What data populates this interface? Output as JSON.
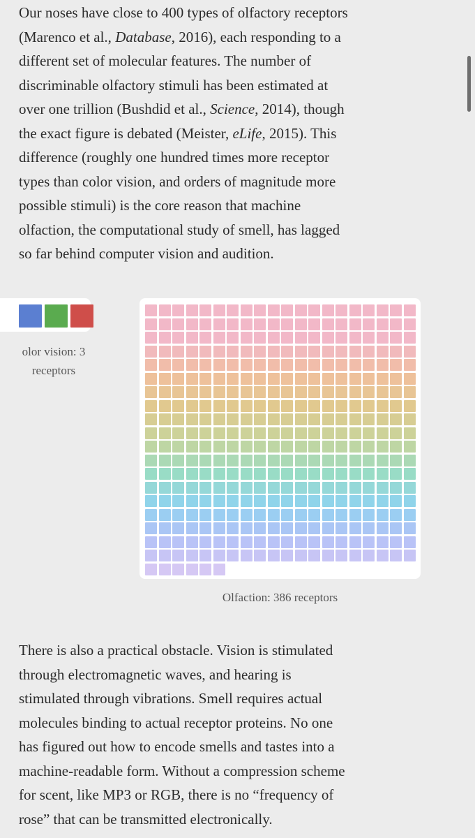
{
  "paragraphs": [
    {
      "lines": [
        [
          "Our noses have close to 400 types of olfactory receptors"
        ],
        [
          "(Marenco et al., ",
          {
            "em": "Database"
          },
          ", 2016), each responding to a"
        ],
        [
          "different set of molecular features. The number of"
        ],
        [
          "discriminable olfactory stimuli has been estimated at"
        ],
        [
          "over one trillion (Bushdid et al., ",
          {
            "em": "Science"
          },
          ", 2014), though"
        ],
        [
          "the exact figure is debated (Meister, ",
          {
            "em": "eLife"
          },
          ", 2015). This"
        ],
        [
          "difference (roughly one hundred times more receptor"
        ],
        [
          "types than color vision, and orders of magnitude more"
        ],
        [
          "possible stimuli) is the core reason that machine"
        ],
        [
          "olfaction, the computational study of smell, has lagged"
        ],
        [
          "so far behind computer vision and audition."
        ]
      ]
    },
    {
      "lines": [
        [
          "There is also a practical obstacle. Vision is stimulated"
        ],
        [
          "through electromagnetic waves, and hearing is"
        ],
        [
          "stimulated through vibrations. Smell requires actual"
        ],
        [
          "molecules binding to actual receptor proteins. No one"
        ],
        [
          "has figured out how to encode smells and tastes into a"
        ],
        [
          "machine-readable form. Without a compression scheme"
        ],
        [
          "for scent, like MP3 or RGB, there is no “frequency of"
        ],
        [
          "rose” that can be transmitted electronically."
        ]
      ]
    }
  ],
  "figure": {
    "color_vision": {
      "label": "olor vision:",
      "count": 3,
      "unit": "receptors",
      "colors": [
        "#5b7fd1",
        "#5aab4f",
        "#cf4e4a"
      ]
    },
    "olfaction": {
      "label": "Olfaction:",
      "count": 386,
      "unit": "receptors",
      "gradient": [
        "#f2b8c8",
        "#f2b8c8",
        "#f0c09c",
        "#e0c98e",
        "#c8d49c",
        "#9adcc4",
        "#8fd3ef",
        "#b4c2f7",
        "#d5c8f4"
      ]
    }
  }
}
